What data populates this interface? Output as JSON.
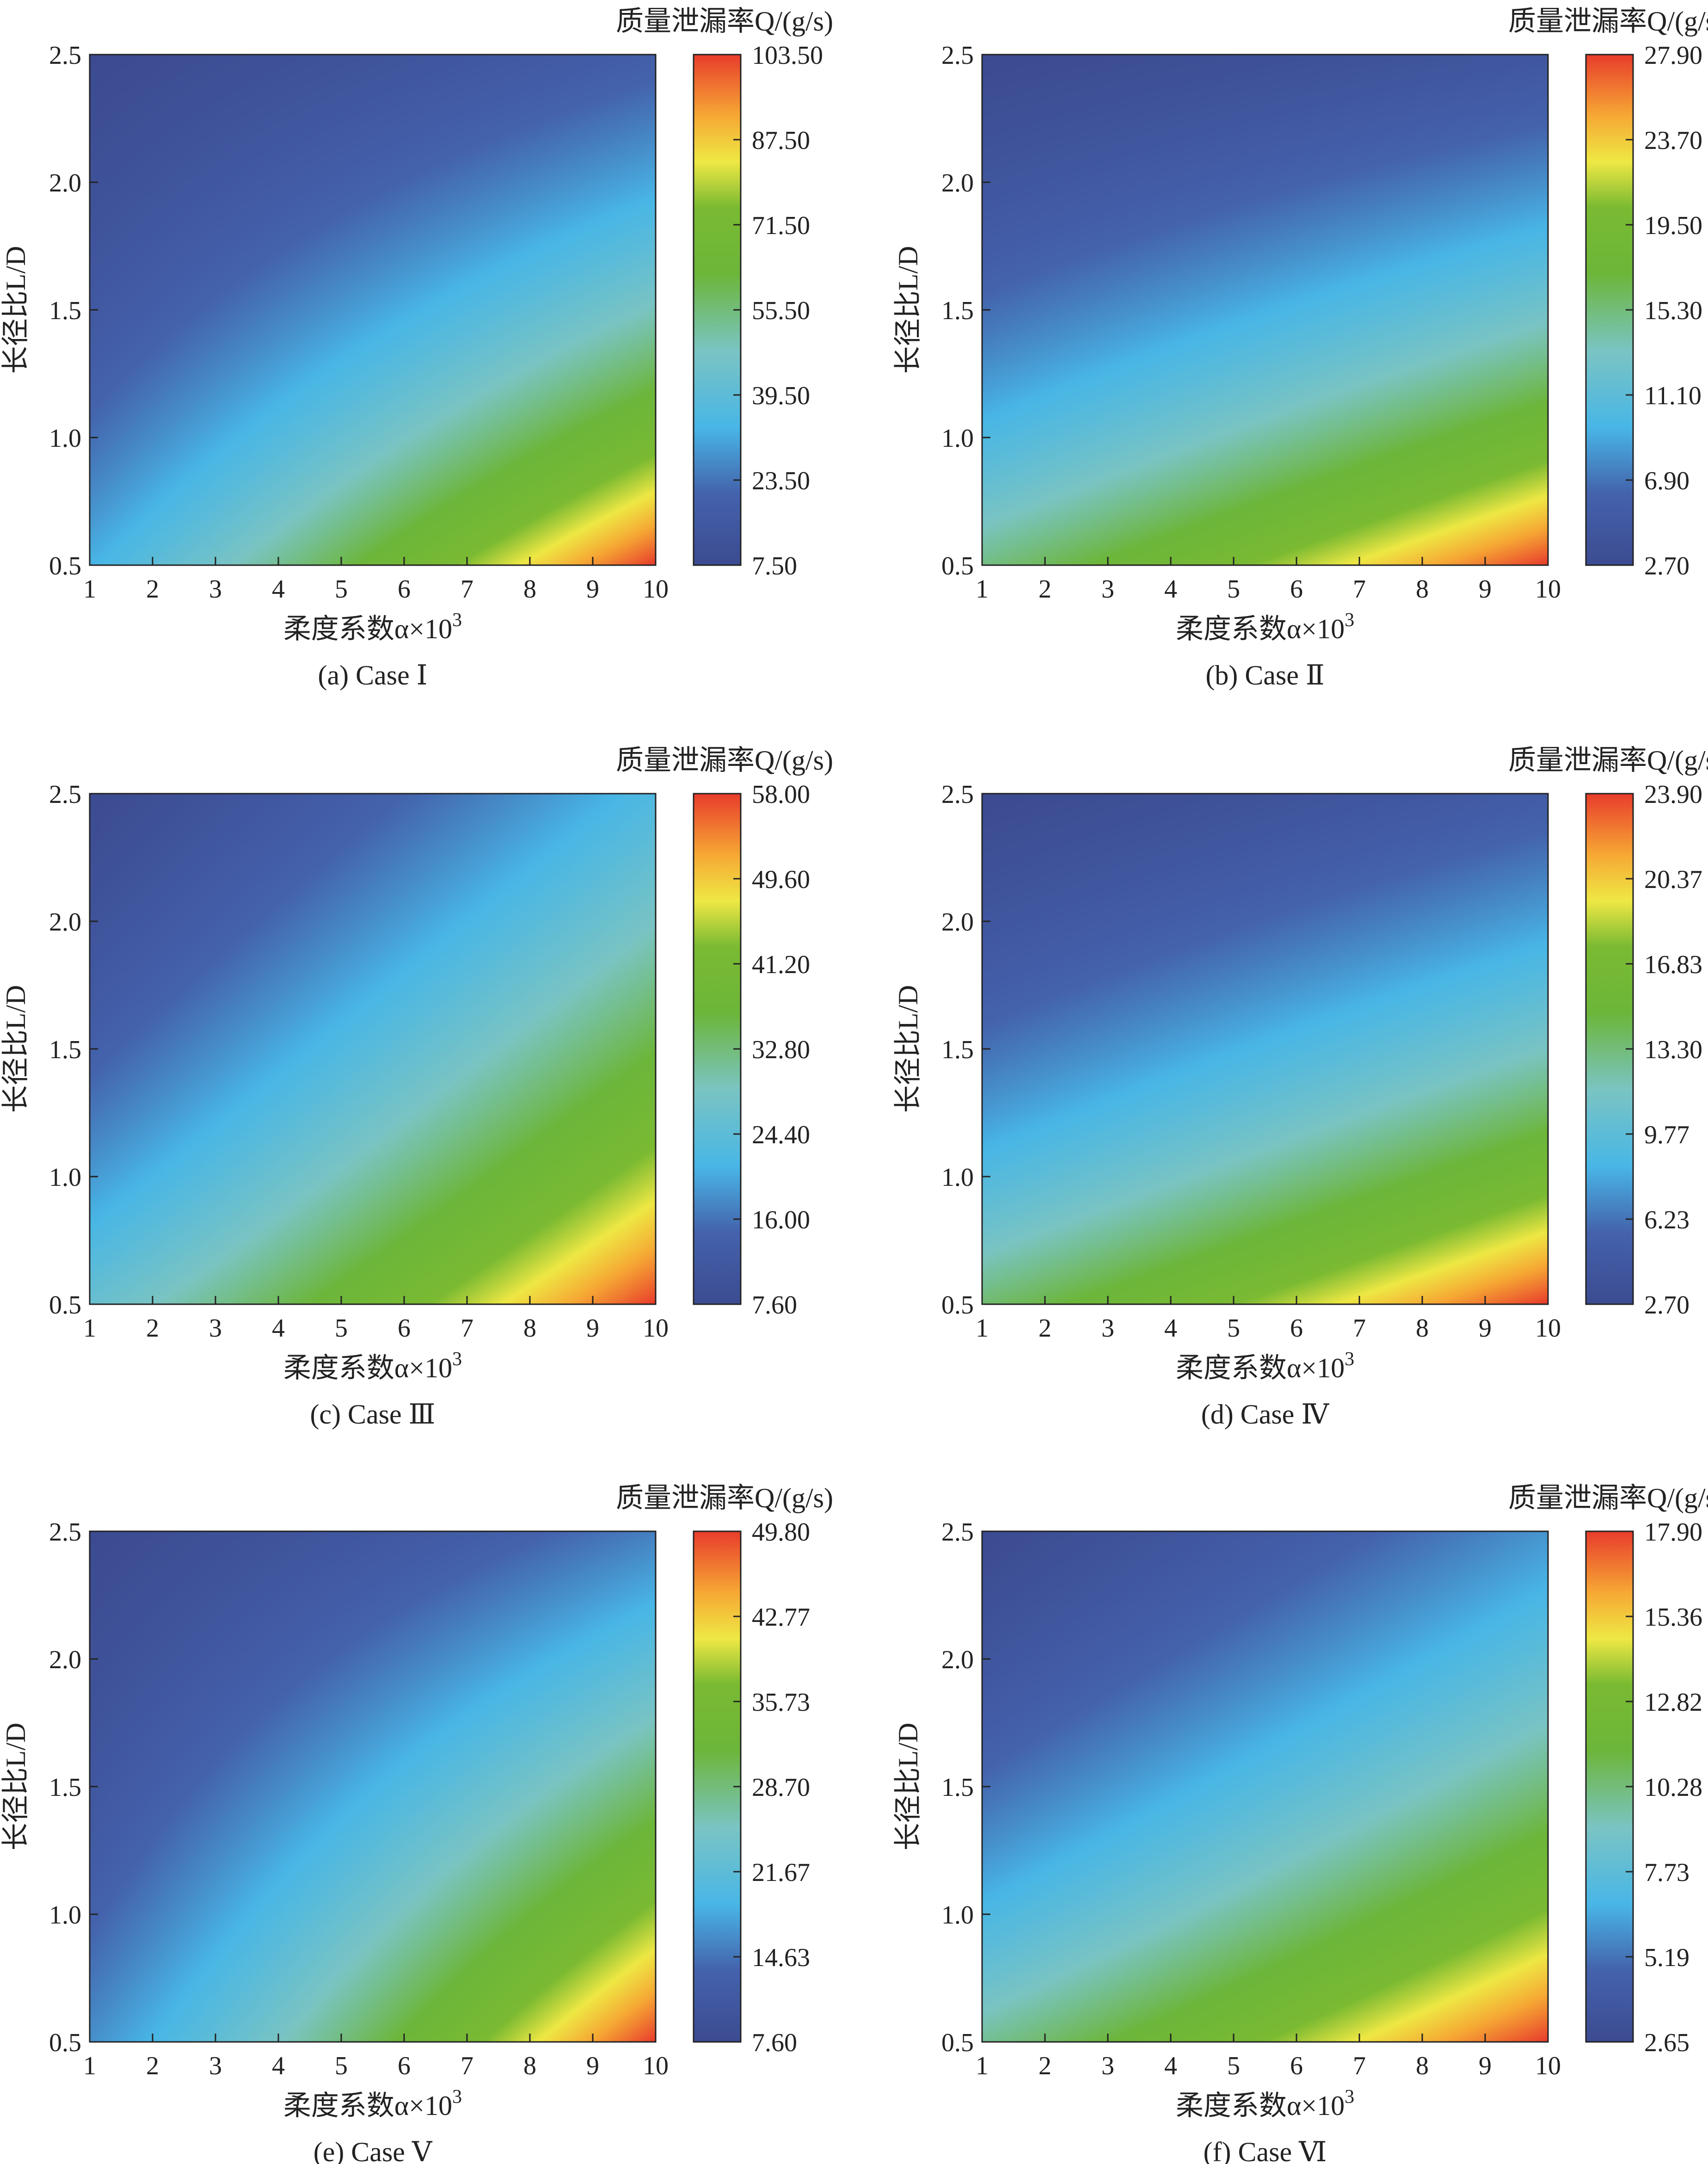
{
  "figure": {
    "panel_count": 6
  },
  "chart_data": [
    {
      "type": "heatmap",
      "id": "a",
      "caption": "(a) Case Ⅰ",
      "xlabel": "柔度系数α×10",
      "xlabel_exponent": "3",
      "ylabel": "长径比L/D",
      "colorbar_title": "质量泄漏率Q/(g/s)",
      "x_ticks": [
        "1",
        "2",
        "3",
        "4",
        "5",
        "6",
        "7",
        "8",
        "9",
        "10"
      ],
      "y_ticks": [
        "0.5",
        "1.0",
        "1.5",
        "2.0",
        "2.5"
      ],
      "xlim": [
        1,
        10
      ],
      "ylim": [
        0.5,
        2.5
      ],
      "colorbar_ticks": [
        "7.50",
        "23.50",
        "39.50",
        "55.50",
        "71.50",
        "87.50",
        "103.50"
      ],
      "value_range": [
        7.5,
        103.5
      ],
      "corner_values": {
        "x1_y0.5": 33.0,
        "x10_y0.5": 103.5,
        "x1_y2.5": 7.5,
        "x10_y2.5": 19.0
      },
      "field_params": {
        "lx": 0.5,
        "ly": 1.5,
        "c": 0.2
      }
    },
    {
      "type": "heatmap",
      "id": "b",
      "caption": "(b) Case Ⅱ",
      "xlabel": "柔度系数α×10",
      "xlabel_exponent": "3",
      "ylabel": "长径比L/D",
      "colorbar_title": "质量泄漏率Q/(g/s)",
      "x_ticks": [
        "1",
        "2",
        "3",
        "4",
        "5",
        "6",
        "7",
        "8",
        "9",
        "10"
      ],
      "y_ticks": [
        "0.5",
        "1.0",
        "1.5",
        "2.0",
        "2.5"
      ],
      "xlim": [
        1,
        10
      ],
      "ylim": [
        0.5,
        2.5
      ],
      "colorbar_ticks": [
        "2.70",
        "6.90",
        "11.10",
        "15.30",
        "19.50",
        "23.70",
        "27.90"
      ],
      "value_range": [
        2.7,
        27.9
      ],
      "corner_values": {
        "x1_y0.5": 15.0,
        "x10_y0.5": 27.9,
        "x1_y2.5": 2.7,
        "x10_y2.5": 4.5
      },
      "field_params": {
        "lx": 0.5,
        "ly": 1.5,
        "c": 0.2
      }
    },
    {
      "type": "heatmap",
      "id": "c",
      "caption": "(c) Case Ⅲ",
      "xlabel": "柔度系数α×10",
      "xlabel_exponent": "3",
      "ylabel": "长径比L/D",
      "colorbar_title": "质量泄漏率Q/(g/s)",
      "x_ticks": [
        "1",
        "2",
        "3",
        "4",
        "5",
        "6",
        "7",
        "8",
        "9",
        "10"
      ],
      "y_ticks": [
        "0.5",
        "1.0",
        "1.5",
        "2.0",
        "2.5"
      ],
      "xlim": [
        1,
        10
      ],
      "ylim": [
        0.5,
        2.5
      ],
      "colorbar_ticks": [
        "7.60",
        "16.00",
        "24.40",
        "32.80",
        "41.20",
        "49.60",
        "58.00"
      ],
      "value_range": [
        7.6,
        58.0
      ],
      "corner_values": {
        "x1_y0.5": 26.0,
        "x10_y0.5": 58.0,
        "x1_y2.5": 7.6,
        "x10_y2.5": 22.5
      },
      "field_params": {
        "lx": 0.6,
        "ly": 1.3,
        "c": 0.25
      }
    },
    {
      "type": "heatmap",
      "id": "d",
      "caption": "(d) Case Ⅳ",
      "xlabel": "柔度系数α×10",
      "xlabel_exponent": "3",
      "ylabel": "长径比L/D",
      "colorbar_title": "质量泄漏率Q/(g/s)",
      "x_ticks": [
        "1",
        "2",
        "3",
        "4",
        "5",
        "6",
        "7",
        "8",
        "9",
        "10"
      ],
      "y_ticks": [
        "0.5",
        "1.0",
        "1.5",
        "2.0",
        "2.5"
      ],
      "xlim": [
        1,
        10
      ],
      "ylim": [
        0.5,
        2.5
      ],
      "colorbar_ticks": [
        "2.70",
        "6.23",
        "9.77",
        "13.30",
        "16.83",
        "20.37",
        "23.90"
      ],
      "value_range": [
        2.7,
        23.9
      ],
      "corner_values": {
        "x1_y0.5": 13.5,
        "x10_y0.5": 23.9,
        "x1_y2.5": 2.7,
        "x10_y2.5": 5.0
      },
      "field_params": {
        "lx": 0.5,
        "ly": 1.5,
        "c": 0.2
      }
    },
    {
      "type": "heatmap",
      "id": "e",
      "caption": "(e) Case Ⅴ",
      "xlabel": "柔度系数α×10",
      "xlabel_exponent": "3",
      "ylabel": "长径比L/D",
      "colorbar_title": "质量泄漏率Q/(g/s)",
      "x_ticks": [
        "1",
        "2",
        "3",
        "4",
        "5",
        "6",
        "7",
        "8",
        "9",
        "10"
      ],
      "y_ticks": [
        "0.5",
        "1.0",
        "1.5",
        "2.0",
        "2.5"
      ],
      "xlim": [
        1,
        10
      ],
      "ylim": [
        0.5,
        2.5
      ],
      "colorbar_ticks": [
        "7.60",
        "14.63",
        "21.67",
        "28.70",
        "35.73",
        "42.77",
        "49.80"
      ],
      "value_range": [
        7.6,
        49.8
      ],
      "corner_values": {
        "x1_y0.5": 16.5,
        "x10_y0.5": 49.8,
        "x1_y2.5": 7.6,
        "x10_y2.5": 15.5
      },
      "field_params": {
        "lx": 0.7,
        "ly": 1.2,
        "c": 0.35
      }
    },
    {
      "type": "heatmap",
      "id": "f",
      "caption": "(f) Case Ⅵ",
      "xlabel": "柔度系数α×10",
      "xlabel_exponent": "3",
      "ylabel": "长径比L/D",
      "colorbar_title": "质量泄漏率Q/(g/s)",
      "x_ticks": [
        "1",
        "2",
        "3",
        "4",
        "5",
        "6",
        "7",
        "8",
        "9",
        "10"
      ],
      "y_ticks": [
        "0.5",
        "1.0",
        "1.5",
        "2.0",
        "2.5"
      ],
      "xlim": [
        1,
        10
      ],
      "ylim": [
        0.5,
        2.5
      ],
      "colorbar_ticks": [
        "2.65",
        "5.19",
        "7.73",
        "10.28",
        "12.82",
        "15.36",
        "17.90"
      ],
      "value_range": [
        2.65,
        17.9
      ],
      "corner_values": {
        "x1_y0.5": 9.8,
        "x10_y0.5": 17.9,
        "x1_y2.5": 2.65,
        "x10_y2.5": 6.0
      },
      "field_params": {
        "lx": 0.5,
        "ly": 1.4,
        "c": 0.2
      }
    }
  ]
}
